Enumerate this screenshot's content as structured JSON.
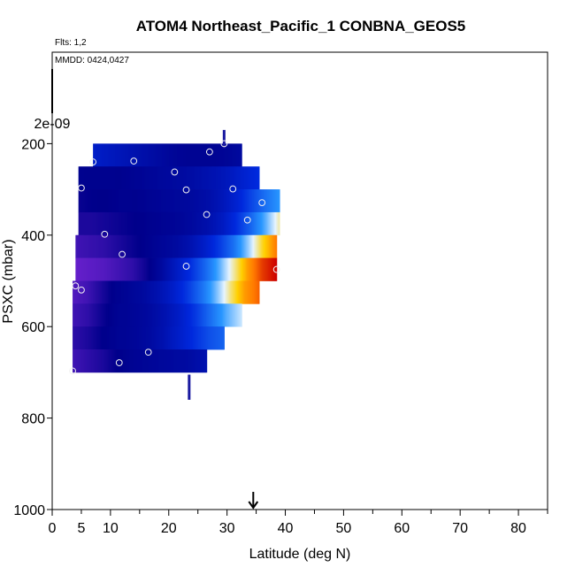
{
  "chart_data": {
    "type": "heatmap",
    "title": "ATOM4 Northeast_Pacific_1 CONBNA_GEOS5",
    "flights_label": "Flts: 1,2",
    "dates_label": "MMDD: 0424,0427",
    "xlabel": "Latitude (deg N)",
    "ylabel": "PSXC (mbar)",
    "xlim": [
      0,
      85
    ],
    "ylim": [
      1000,
      0
    ],
    "y_reversed": true,
    "x_ticks": [
      "0",
      "5",
      "10",
      "20",
      "30",
      "40",
      "50",
      "60",
      "70",
      "80"
    ],
    "x_tick_values": [
      0,
      5,
      10,
      20,
      30,
      40,
      50,
      60,
      70,
      80
    ],
    "y_ticks": [
      "200",
      "400",
      "600",
      "800",
      "1000"
    ],
    "y_tick_values": [
      200,
      400,
      600,
      800,
      1000
    ],
    "colorbar_label": "2e-09",
    "arrow_latitude": 34.5,
    "colors": {
      "low": "#8a2be2",
      "mid_low": "#00008b",
      "mid": "#1e64ff",
      "mid_high": "#e8f4ff",
      "high": "#ffd000",
      "max": "#cc0000"
    },
    "bands": [
      {
        "p_top": 200,
        "p_bot": 250,
        "lat_start": 7,
        "lat_end": 32.5,
        "v": [
          0.3,
          0.28,
          0.26,
          0.24,
          0.22,
          0.2,
          0.18,
          0.17,
          0.17,
          0.17,
          0.18,
          0.2
        ]
      },
      {
        "p_top": 250,
        "p_bot": 300,
        "lat_start": 4.5,
        "lat_end": 35.5,
        "v": [
          0.16,
          0.16,
          0.16,
          0.16,
          0.17,
          0.18,
          0.19,
          0.2,
          0.21,
          0.23,
          0.25,
          0.28,
          0.32,
          0.36
        ]
      },
      {
        "p_top": 300,
        "p_bot": 350,
        "lat_start": 4.5,
        "lat_end": 39,
        "v": [
          0.14,
          0.15,
          0.15,
          0.16,
          0.16,
          0.17,
          0.18,
          0.19,
          0.2,
          0.22,
          0.26,
          0.32,
          0.4,
          0.48,
          0.55
        ]
      },
      {
        "p_top": 350,
        "p_bot": 400,
        "lat_start": 4.5,
        "lat_end": 39,
        "v": [
          0.12,
          0.12,
          0.13,
          0.14,
          0.15,
          0.16,
          0.17,
          0.18,
          0.2,
          0.23,
          0.28,
          0.36,
          0.46,
          0.58,
          0.72
        ]
      },
      {
        "p_top": 400,
        "p_bot": 450,
        "lat_start": 4,
        "lat_end": 38.5,
        "v": [
          0.08,
          0.09,
          0.1,
          0.12,
          0.14,
          0.16,
          0.18,
          0.2,
          0.24,
          0.3,
          0.38,
          0.48,
          0.62,
          0.78,
          0.9
        ]
      },
      {
        "p_top": 450,
        "p_bot": 500,
        "lat_start": 4,
        "lat_end": 38.5,
        "v": [
          0.04,
          0.05,
          0.06,
          0.08,
          0.1,
          0.14,
          0.2,
          0.28,
          0.36,
          0.46,
          0.58,
          0.72,
          0.86,
          0.95,
          1.0
        ]
      },
      {
        "p_top": 500,
        "p_bot": 550,
        "lat_start": 3.5,
        "lat_end": 35.5,
        "v": [
          0.06,
          0.08,
          0.12,
          0.16,
          0.18,
          0.2,
          0.24,
          0.3,
          0.38,
          0.48,
          0.6,
          0.74,
          0.86,
          0.92
        ]
      },
      {
        "p_top": 550,
        "p_bot": 600,
        "lat_start": 3.5,
        "lat_end": 32.5,
        "v": [
          0.08,
          0.1,
          0.14,
          0.17,
          0.18,
          0.2,
          0.24,
          0.3,
          0.38,
          0.48,
          0.58,
          0.66
        ]
      },
      {
        "p_top": 600,
        "p_bot": 650,
        "lat_start": 3.5,
        "lat_end": 29.5,
        "v": [
          0.1,
          0.12,
          0.15,
          0.17,
          0.18,
          0.2,
          0.24,
          0.3,
          0.36,
          0.42,
          0.46
        ]
      },
      {
        "p_top": 650,
        "p_bot": 700,
        "lat_start": 3.5,
        "lat_end": 26.5,
        "v": [
          0.08,
          0.1,
          0.12,
          0.15,
          0.17,
          0.18,
          0.19,
          0.2,
          0.21,
          0.24
        ]
      }
    ],
    "points": [
      {
        "lat": 7,
        "p": 240
      },
      {
        "lat": 14,
        "p": 238
      },
      {
        "lat": 21,
        "p": 262
      },
      {
        "lat": 27,
        "p": 218
      },
      {
        "lat": 29.5,
        "p": 200
      },
      {
        "lat": 5,
        "p": 297
      },
      {
        "lat": 23,
        "p": 301
      },
      {
        "lat": 31,
        "p": 299
      },
      {
        "lat": 36,
        "p": 329
      },
      {
        "lat": 26.5,
        "p": 355
      },
      {
        "lat": 33.5,
        "p": 367
      },
      {
        "lat": 9,
        "p": 398
      },
      {
        "lat": 12,
        "p": 442
      },
      {
        "lat": 23,
        "p": 468
      },
      {
        "lat": 38.5,
        "p": 475
      },
      {
        "lat": 4,
        "p": 511
      },
      {
        "lat": 5,
        "p": 520
      },
      {
        "lat": 16.5,
        "p": 656
      },
      {
        "lat": 11.5,
        "p": 679
      },
      {
        "lat": 3.5,
        "p": 697
      }
    ],
    "ticks_marks": [
      {
        "lat": 29.5,
        "p_from": 170,
        "p_to": 210
      },
      {
        "lat": 23.5,
        "p_from": 705,
        "p_to": 760
      }
    ]
  }
}
